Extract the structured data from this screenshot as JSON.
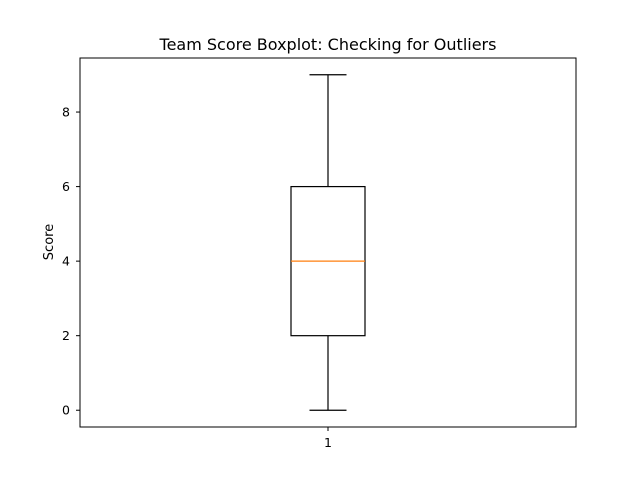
{
  "chart_data": {
    "type": "box",
    "title": "Team Score Boxplot: Checking for Outliers",
    "xlabel": "",
    "ylabel": "Score",
    "categories": [
      "1"
    ],
    "boxes": [
      {
        "category": "1",
        "whisker_low": 0,
        "q1": 2,
        "median": 4,
        "q3": 6,
        "whisker_high": 9,
        "outliers": []
      }
    ],
    "ylim": [
      -0.45,
      9.45
    ],
    "yticks": [
      0,
      2,
      4,
      6,
      8
    ],
    "grid": false,
    "colors": {
      "box": "#000000",
      "median": "#ff7f0e",
      "whisker": "#000000"
    }
  }
}
